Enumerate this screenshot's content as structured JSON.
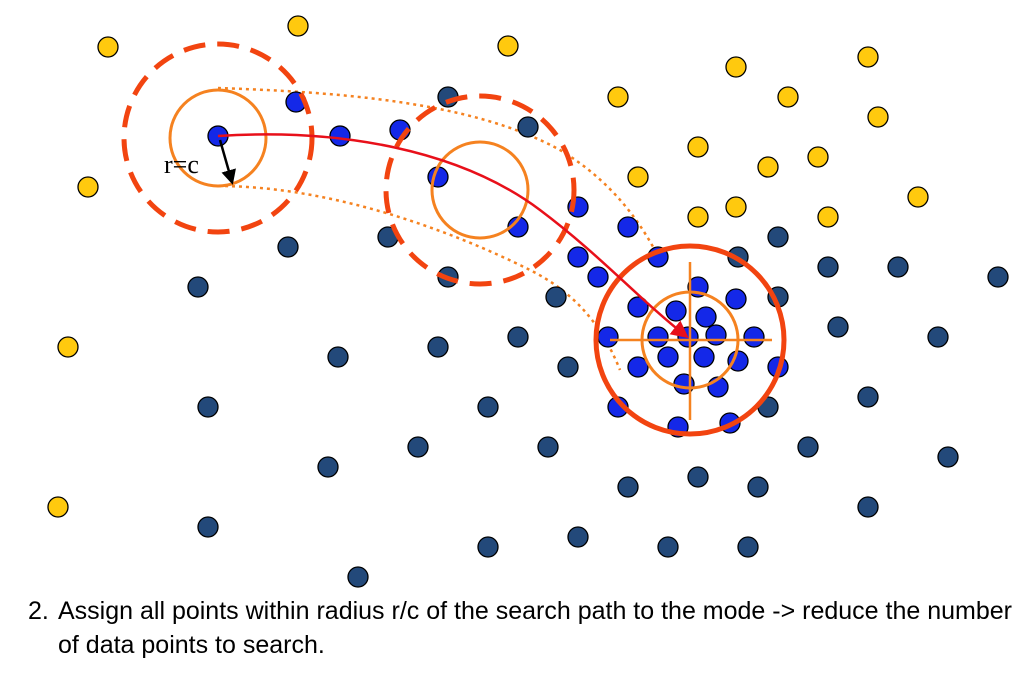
{
  "colors": {
    "yellow": "#FFC90E",
    "dark_blue": "#23497A",
    "bright_blue": "#1428E8",
    "orange": "#F58220",
    "red_orange": "#F24410",
    "red": "#E8101A",
    "outline": "#000000"
  },
  "label": "r=c",
  "caption": {
    "number": "2.",
    "text": "Assign all points within radius r/c of the search path to the mode -> reduce the number of data points to search."
  }
}
